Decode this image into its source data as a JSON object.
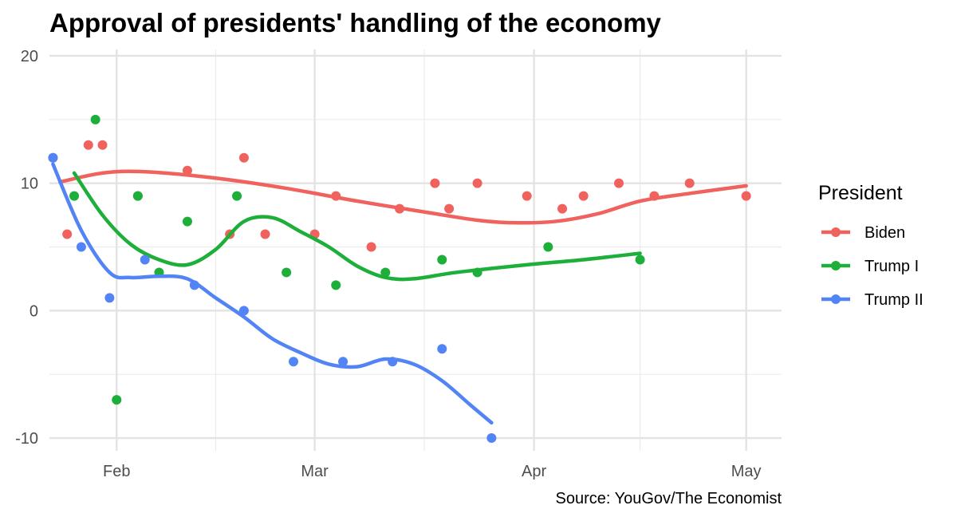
{
  "chart_data": {
    "type": "scatter",
    "title": "Approval of presidents' handling of the economy",
    "caption": "Source: YouGov/The Economist",
    "xlabel": "",
    "ylabel": "",
    "x_tick_labels": [
      "Feb",
      "Mar",
      "Apr",
      "May"
    ],
    "x_ticks": [
      14,
      42,
      73,
      103
    ],
    "xlim": [
      4.5,
      108
    ],
    "y_ticks": [
      -10,
      0,
      10,
      20
    ],
    "y_tick_labels": [
      "-10",
      "0",
      "10",
      "20"
    ],
    "ylim": [
      -11,
      20.5
    ],
    "grid": true,
    "legend": {
      "title": "President",
      "position": "right"
    },
    "series": [
      {
        "name": "Biden",
        "color": "#F0625D",
        "points": [
          [
            5,
            12
          ],
          [
            7,
            6
          ],
          [
            10,
            13
          ],
          [
            12,
            13
          ],
          [
            17,
            9
          ],
          [
            24,
            11
          ],
          [
            30,
            6
          ],
          [
            32,
            12
          ],
          [
            35,
            6
          ],
          [
            42,
            6
          ],
          [
            45,
            9
          ],
          [
            50,
            5
          ],
          [
            54,
            8
          ],
          [
            59,
            10
          ],
          [
            61,
            8
          ],
          [
            65,
            10
          ],
          [
            72,
            9
          ],
          [
            77,
            8
          ],
          [
            80,
            9
          ],
          [
            85,
            10
          ],
          [
            90,
            9
          ],
          [
            95,
            10
          ],
          [
            103,
            9
          ]
        ],
        "smooth": [
          [
            6,
            10.1
          ],
          [
            12,
            10.8
          ],
          [
            18,
            10.9
          ],
          [
            28,
            10.4
          ],
          [
            38,
            9.6
          ],
          [
            48,
            8.6
          ],
          [
            58,
            7.7
          ],
          [
            65,
            7.1
          ],
          [
            70,
            6.9
          ],
          [
            76,
            7.0
          ],
          [
            82,
            7.6
          ],
          [
            88,
            8.6
          ],
          [
            95,
            9.2
          ],
          [
            103,
            9.8
          ]
        ]
      },
      {
        "name": "Trump I",
        "color": "#1DAF3A",
        "points": [
          [
            8,
            9
          ],
          [
            11,
            15
          ],
          [
            14,
            -7
          ],
          [
            17,
            9
          ],
          [
            20,
            3
          ],
          [
            24,
            7
          ],
          [
            31,
            9
          ],
          [
            38,
            3
          ],
          [
            45,
            2
          ],
          [
            52,
            3
          ],
          [
            60,
            4
          ],
          [
            65,
            3
          ],
          [
            75,
            5
          ],
          [
            88,
            4
          ]
        ],
        "smooth": [
          [
            8,
            10.8
          ],
          [
            12,
            7.5
          ],
          [
            16,
            5.2
          ],
          [
            20,
            4.0
          ],
          [
            24,
            3.6
          ],
          [
            28,
            4.8
          ],
          [
            32,
            7.0
          ],
          [
            36,
            7.3
          ],
          [
            40,
            6.2
          ],
          [
            44,
            5.0
          ],
          [
            48,
            3.5
          ],
          [
            52,
            2.6
          ],
          [
            56,
            2.5
          ],
          [
            62,
            3.0
          ],
          [
            72,
            3.6
          ],
          [
            80,
            4.0
          ],
          [
            88,
            4.5
          ]
        ]
      },
      {
        "name": "Trump II",
        "color": "#5384F5",
        "points": [
          [
            5,
            12
          ],
          [
            9,
            5
          ],
          [
            13,
            1
          ],
          [
            18,
            4
          ],
          [
            25,
            2
          ],
          [
            32,
            0
          ],
          [
            39,
            -4
          ],
          [
            46,
            -4
          ],
          [
            53,
            -4
          ],
          [
            60,
            -3
          ],
          [
            67,
            -10
          ]
        ],
        "smooth": [
          [
            5,
            11.5
          ],
          [
            9,
            6.3
          ],
          [
            13,
            3.0
          ],
          [
            16,
            2.6
          ],
          [
            20,
            2.7
          ],
          [
            24,
            2.5
          ],
          [
            28,
            1.0
          ],
          [
            32,
            -0.5
          ],
          [
            36,
            -2.2
          ],
          [
            40,
            -3.3
          ],
          [
            44,
            -4.2
          ],
          [
            48,
            -4.4
          ],
          [
            52,
            -3.8
          ],
          [
            56,
            -4.2
          ],
          [
            60,
            -5.5
          ],
          [
            64,
            -7.4
          ],
          [
            67,
            -8.8
          ]
        ]
      }
    ]
  }
}
